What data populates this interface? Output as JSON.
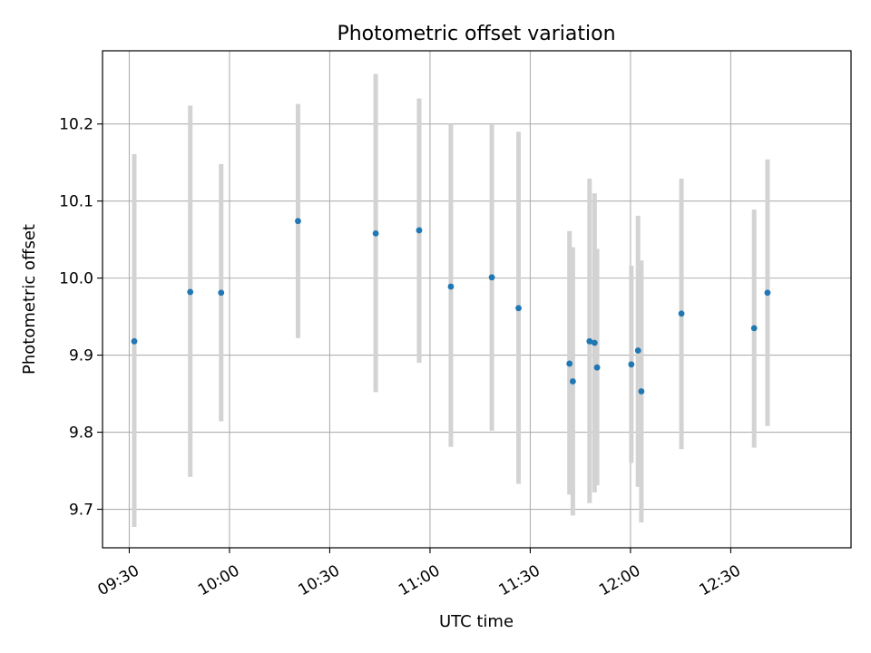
{
  "chart_data": {
    "type": "scatter",
    "title": "Photometric offset variation",
    "xlabel": "UTC time",
    "ylabel": "Photometric offset",
    "x_ticks": [
      "09:30",
      "10:00",
      "10:30",
      "11:00",
      "11:30",
      "12:00",
      "12:30"
    ],
    "y_ticks": [
      "9.7",
      "9.8",
      "9.9",
      "10.0",
      "10.1",
      "10.2"
    ],
    "xlim": [
      "09:22",
      "13:06"
    ],
    "ylim": [
      9.65,
      10.295
    ],
    "grid": true,
    "colors": {
      "points": "#1f77b4",
      "error_bars": "#d3d3d3",
      "grid": "#b0b0b0"
    },
    "series": [
      {
        "error_bar_style": "vertical",
        "points": [
          {
            "x": "09:31:30",
            "y": 9.918,
            "ylow": 9.677,
            "yhigh": 10.161
          },
          {
            "x": "09:48:15",
            "y": 9.982,
            "ylow": 9.742,
            "yhigh": 10.224
          },
          {
            "x": "09:57:30",
            "y": 9.981,
            "ylow": 9.814,
            "yhigh": 10.148
          },
          {
            "x": "10:20:30",
            "y": 10.074,
            "ylow": 9.922,
            "yhigh": 10.226
          },
          {
            "x": "10:43:45",
            "y": 10.058,
            "ylow": 9.852,
            "yhigh": 10.265
          },
          {
            "x": "10:56:45",
            "y": 10.062,
            "ylow": 9.89,
            "yhigh": 10.233
          },
          {
            "x": "11:06:15",
            "y": 9.989,
            "ylow": 9.781,
            "yhigh": 10.2
          },
          {
            "x": "11:18:30",
            "y": 10.001,
            "ylow": 9.802,
            "yhigh": 10.199
          },
          {
            "x": "11:26:30",
            "y": 9.961,
            "ylow": 9.733,
            "yhigh": 10.19
          },
          {
            "x": "11:41:45",
            "y": 9.889,
            "ylow": 9.719,
            "yhigh": 10.061
          },
          {
            "x": "11:42:45",
            "y": 9.866,
            "ylow": 9.692,
            "yhigh": 10.04
          },
          {
            "x": "11:47:45",
            "y": 9.918,
            "ylow": 9.708,
            "yhigh": 10.129
          },
          {
            "x": "11:49:15",
            "y": 9.916,
            "ylow": 9.722,
            "yhigh": 10.11
          },
          {
            "x": "11:50:00",
            "y": 9.884,
            "ylow": 9.731,
            "yhigh": 10.038
          },
          {
            "x": "12:00:15",
            "y": 9.888,
            "ylow": 9.76,
            "yhigh": 10.016
          },
          {
            "x": "12:02:15",
            "y": 9.906,
            "ylow": 9.729,
            "yhigh": 10.081
          },
          {
            "x": "12:03:15",
            "y": 9.853,
            "ylow": 9.683,
            "yhigh": 10.023
          },
          {
            "x": "12:15:15",
            "y": 9.954,
            "ylow": 9.778,
            "yhigh": 10.129
          },
          {
            "x": "12:37:00",
            "y": 9.935,
            "ylow": 9.78,
            "yhigh": 10.089
          },
          {
            "x": "12:41:00",
            "y": 9.981,
            "ylow": 9.808,
            "yhigh": 10.154
          }
        ]
      }
    ]
  }
}
